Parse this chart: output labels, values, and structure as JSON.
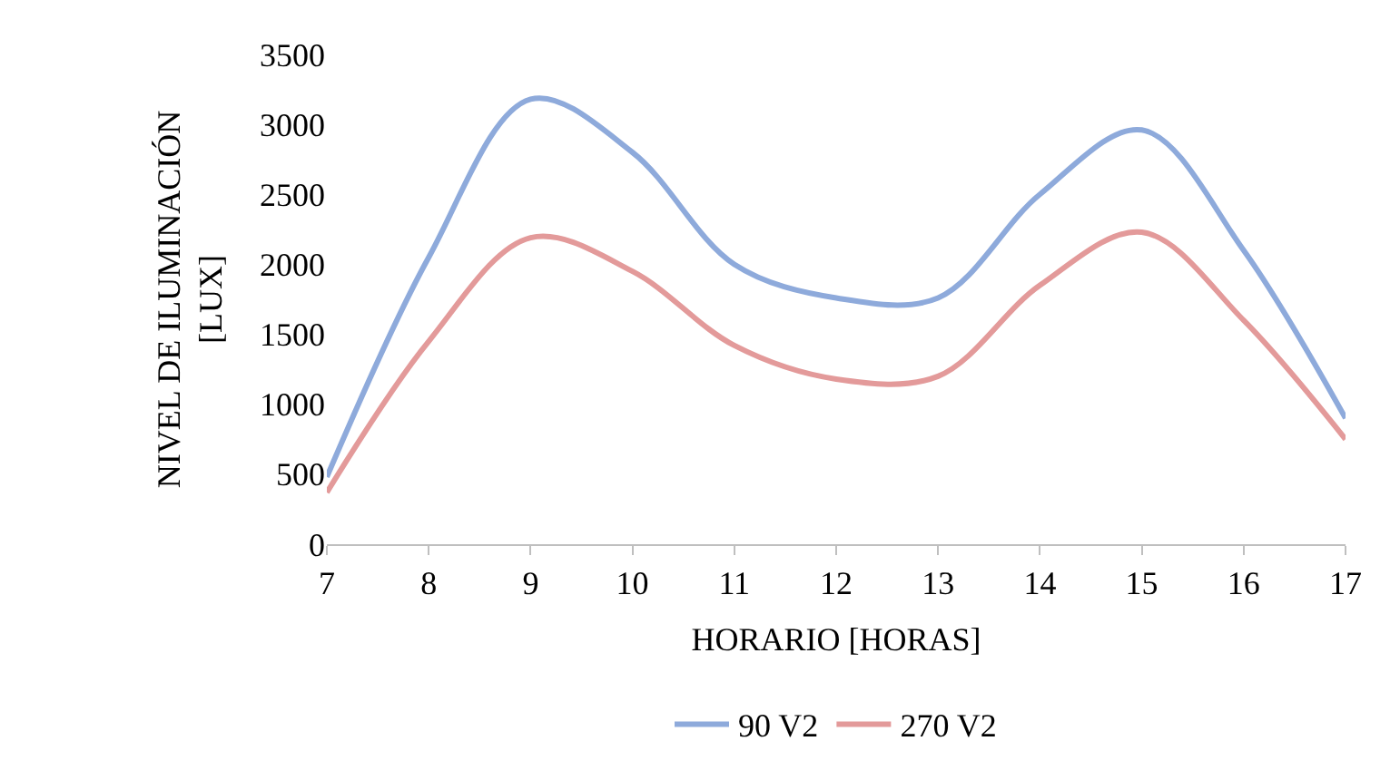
{
  "chart_data": {
    "type": "line",
    "xlabel": "HORARIO [HORAS]",
    "ylabel": "NIVEL DE ILUMINACIÓN [LUX]",
    "x": [
      7,
      8,
      9,
      10,
      11,
      12,
      13,
      14,
      15,
      16,
      17
    ],
    "series": [
      {
        "name": "90 V2",
        "color": "#8eaadb",
        "values": [
          480,
          2050,
          3180,
          2800,
          2000,
          1760,
          1760,
          2500,
          2960,
          2100,
          900
        ]
      },
      {
        "name": "270 V2",
        "color": "#e39a9a",
        "values": [
          370,
          1450,
          2190,
          1950,
          1420,
          1180,
          1200,
          1850,
          2230,
          1600,
          750
        ]
      }
    ],
    "xlim": [
      7,
      17
    ],
    "xticks": [
      7,
      8,
      9,
      10,
      11,
      12,
      13,
      14,
      15,
      16,
      17
    ],
    "ylim": [
      0,
      3500
    ],
    "yticks": [
      0,
      500,
      1000,
      1500,
      2000,
      2500,
      3000,
      3500
    ],
    "legend": "bottom",
    "marker": "none",
    "line_style": "solid"
  }
}
